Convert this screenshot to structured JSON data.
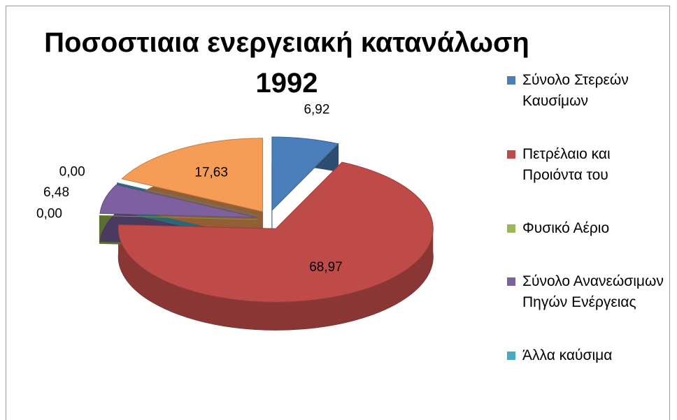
{
  "chart_data": {
    "type": "pie3d",
    "title": "Ποσοστιαια ενεργειακή κατανάλωση 1992",
    "categories": [
      "Σύνολο Στερεών Καυσίμων",
      "Πετρέλαιο και Προιόντα του",
      "Φυσικό Αέριο",
      "Σύνολο Ανανεώσιμων Πηγών Ενέργειας",
      "Άλλα καύσιμα",
      null
    ],
    "values": [
      6.92,
      68.97,
      0.0,
      6.48,
      0.0,
      17.63
    ],
    "value_labels": [
      "6,92",
      "68,97",
      "0,00",
      "6,48",
      "0,00",
      "17,63"
    ],
    "colors": [
      "#4a7ebb",
      "#be4b48",
      "#98b954",
      "#7d60a0",
      "#46aac5",
      "#f59d56"
    ],
    "legend": "right"
  }
}
